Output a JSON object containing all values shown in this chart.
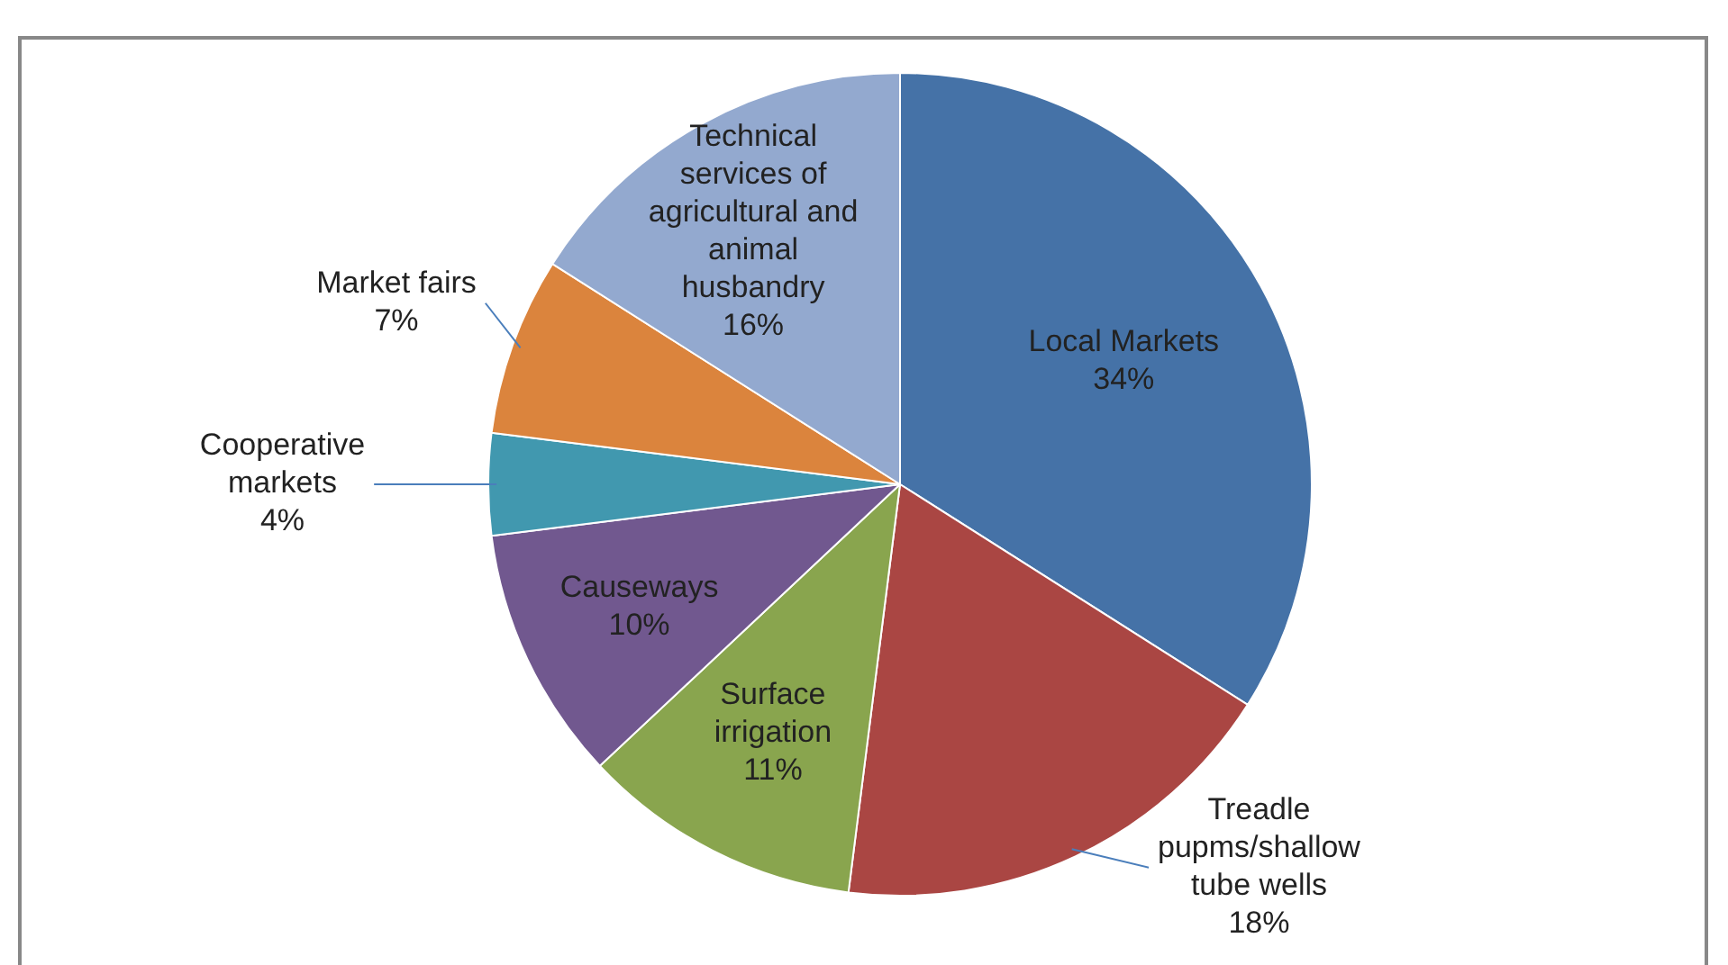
{
  "chart_data": {
    "type": "pie",
    "categories": [
      "Local Markets",
      "Treadle pupms/shallow tube wells",
      "Surface irrigation",
      "Causeways",
      "Cooperative markets",
      "Market fairs",
      "Technical services of agricultural and animal husbandry"
    ],
    "values": [
      34,
      18,
      11,
      10,
      4,
      7,
      16
    ],
    "colors": [
      "#4572a7",
      "#aa4643",
      "#89a54e",
      "#71588f",
      "#4198af",
      "#db843d",
      "#93a9cf"
    ],
    "value_labels": [
      "34%",
      "18%",
      "11%",
      "10%",
      "4%",
      "7%",
      "16%"
    ],
    "legend": false
  }
}
